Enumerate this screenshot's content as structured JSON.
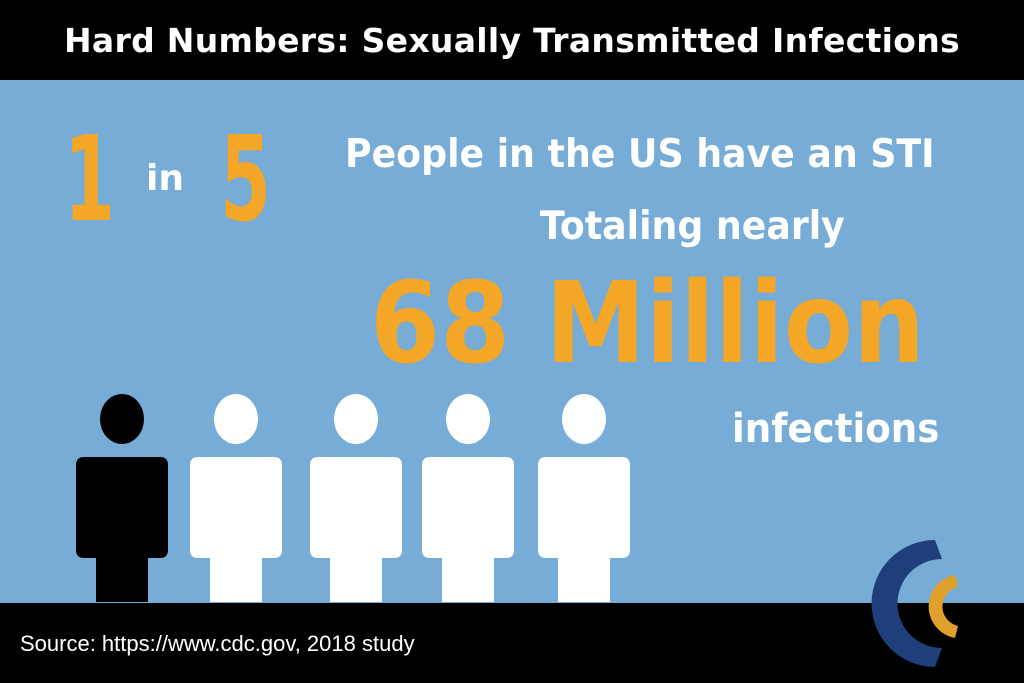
{
  "header": {
    "title": "Hard Numbers: Sexually Transmitted Infections"
  },
  "ratio": {
    "numerator": "1",
    "connector": "in",
    "denominator": "5"
  },
  "text": {
    "line1": "People in the US have an STI",
    "line2": "Totaling nearly",
    "big_stat": "68 Million",
    "line3": "infections"
  },
  "figures": [
    {
      "color": "#000000",
      "icon": "person-icon"
    },
    {
      "color": "#ffffff",
      "icon": "person-icon"
    },
    {
      "color": "#ffffff",
      "icon": "person-icon"
    },
    {
      "color": "#ffffff",
      "icon": "person-icon"
    },
    {
      "color": "#ffffff",
      "icon": "person-icon"
    }
  ],
  "footer": {
    "source": "Source: https://www.cdc.gov, 2018 study"
  },
  "colors": {
    "background": "#76acd5",
    "accent": "#f4a626",
    "bars": "#000000",
    "logo_blue": "#1f3f7a",
    "logo_gold": "#e0a02c"
  }
}
